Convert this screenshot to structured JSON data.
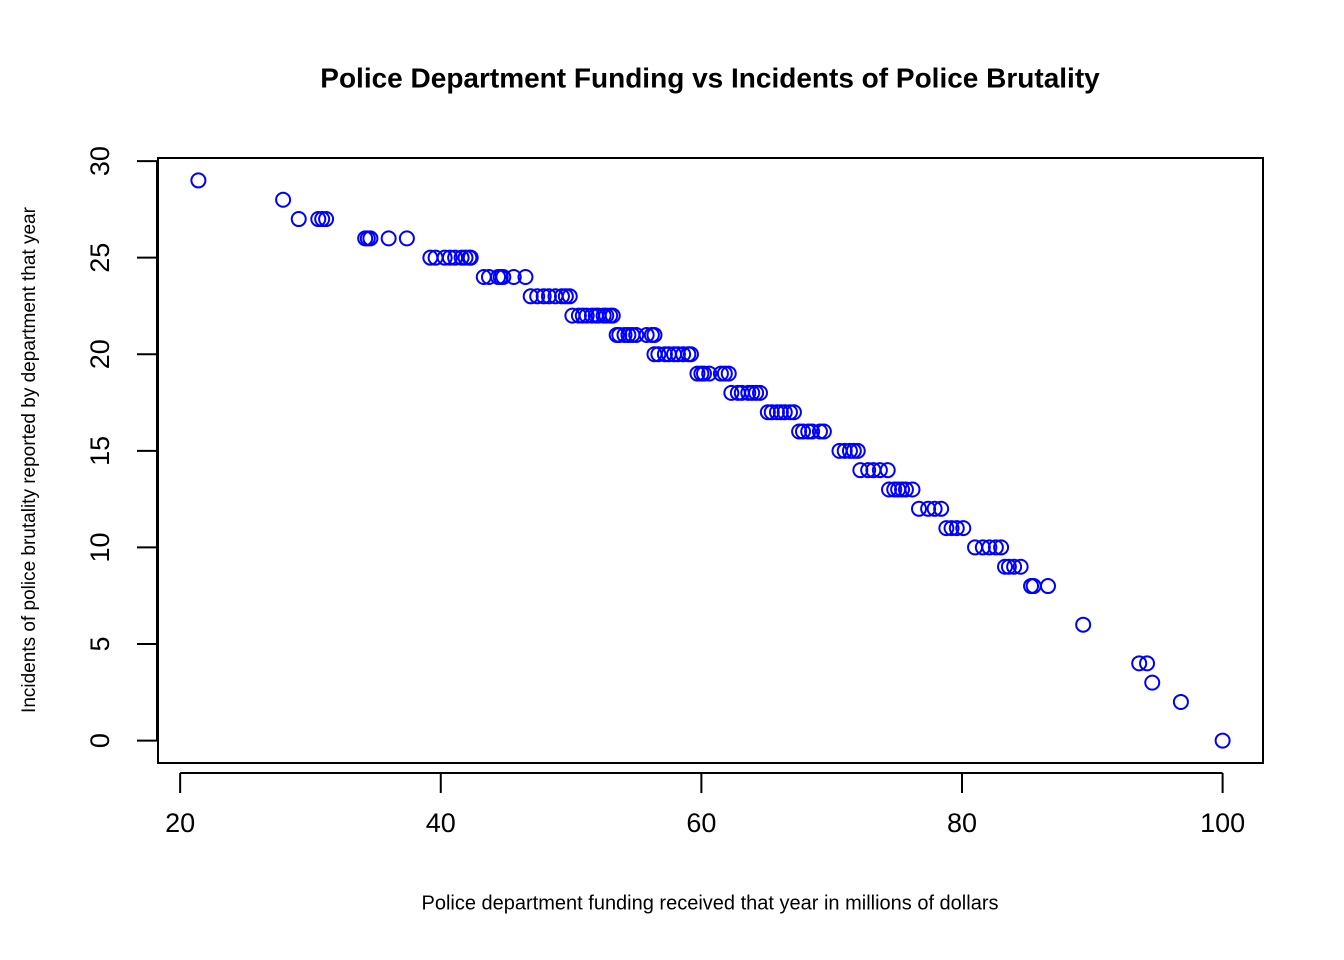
{
  "chart_data": {
    "type": "scatter",
    "title": "Police Department Funding vs Incidents of Police Brutality",
    "x_label": "Police department funding received that year in millions of dollars",
    "y_label": "Incidents of police brutality reported by department that year",
    "color": "#0000ff",
    "x": [
      21.4,
      27.9,
      29.1,
      30.6,
      30.9,
      31.2,
      34.2,
      34.4,
      34.6,
      36.0,
      37.4,
      39.2,
      39.6,
      40.3,
      40.7,
      41.1,
      41.6,
      41.9,
      42.2,
      42.3,
      43.3,
      43.7,
      44.4,
      44.6,
      44.8,
      45.6,
      46.5,
      46.9,
      47.4,
      47.9,
      48.3,
      48.8,
      49.3,
      49.6,
      49.9,
      50.1,
      50.6,
      50.9,
      51.2,
      51.6,
      51.9,
      52.1,
      52.5,
      52.7,
      53.0,
      53.2,
      53.5,
      53.7,
      54.1,
      54.4,
      54.7,
      55.0,
      55.8,
      56.2,
      56.4,
      56.4,
      56.7,
      57.2,
      57.5,
      57.9,
      58.2,
      58.6,
      59.0,
      59.2,
      59.7,
      60.0,
      60.2,
      60.6,
      61.5,
      61.8,
      62.1,
      62.3,
      62.8,
      63.1,
      63.6,
      63.9,
      64.2,
      64.5,
      65.1,
      65.4,
      65.8,
      66.1,
      66.4,
      66.8,
      67.1,
      67.5,
      67.8,
      68.2,
      68.5,
      69.1,
      69.4,
      70.6,
      71.0,
      71.4,
      71.7,
      72.0,
      72.2,
      72.8,
      73.2,
      73.7,
      74.3,
      74.4,
      74.8,
      75.1,
      75.4,
      75.7,
      76.2,
      76.7,
      77.4,
      77.9,
      78.4,
      78.8,
      79.2,
      79.6,
      80.1,
      81.0,
      81.6,
      82.1,
      82.6,
      83.0,
      83.3,
      83.6,
      84.0,
      84.5,
      85.3,
      85.5,
      86.6,
      89.3,
      93.6,
      94.2,
      94.6,
      96.8,
      100.0
    ],
    "y": [
      29,
      28,
      27,
      27,
      27,
      27,
      26,
      26,
      26,
      26,
      26,
      25,
      25,
      25,
      25,
      25,
      25,
      25,
      25,
      25,
      24,
      24,
      24,
      24,
      24,
      24,
      24,
      23,
      23,
      23,
      23,
      23,
      23,
      23,
      23,
      22,
      22,
      22,
      22,
      22,
      22,
      22,
      22,
      22,
      22,
      22,
      21,
      21,
      21,
      21,
      21,
      21,
      21,
      21,
      21,
      20,
      20,
      20,
      20,
      20,
      20,
      20,
      20,
      20,
      19,
      19,
      19,
      19,
      19,
      19,
      19,
      18,
      18,
      18,
      18,
      18,
      18,
      18,
      17,
      17,
      17,
      17,
      17,
      17,
      17,
      16,
      16,
      16,
      16,
      16,
      16,
      15,
      15,
      15,
      15,
      15,
      14,
      14,
      14,
      14,
      14,
      13,
      13,
      13,
      13,
      13,
      13,
      12,
      12,
      12,
      12,
      11,
      11,
      11,
      11,
      10,
      10,
      10,
      10,
      10,
      9,
      9,
      9,
      9,
      8,
      8,
      8,
      6,
      4,
      4,
      3,
      2,
      0
    ],
    "xlim": [
      18.3,
      103.1
    ],
    "ylim": [
      -1.16,
      30.16
    ],
    "xticks": [
      20,
      40,
      60,
      80,
      100
    ],
    "yticks": [
      0,
      5,
      10,
      15,
      20,
      25,
      30
    ]
  }
}
